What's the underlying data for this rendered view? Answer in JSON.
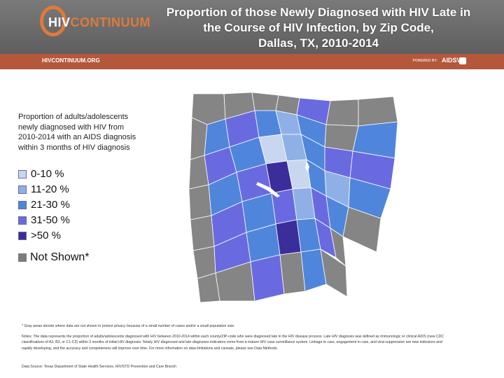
{
  "header": {
    "logo": {
      "part1": "HIV",
      "part2": "CONTINUUM"
    },
    "title_lines": [
      "Proportion of those Newly Diagnosed with HIV Late in",
      "the Course of HIV Infection, by Zip Code,",
      "Dallas, TX, 2010-2014"
    ]
  },
  "bar": {
    "site_url": "HIVCONTINUUM.ORG",
    "powered_by": "POWERED BY:",
    "partner": "AIDSVu"
  },
  "legend": {
    "title": "Proportion of adults/adolescents newly diagnosed with HIV from 2010-2014 with an AIDS diagnosis within 3 months of HIV diagnosis",
    "items": [
      {
        "label": "0-10 %",
        "color": "#c8d6f0"
      },
      {
        "label": "11-20 %",
        "color": "#8fb0e6"
      },
      {
        "label": "21-30 %",
        "color": "#4f86dc"
      },
      {
        "label": "31-50 %",
        "color": "#6a6ae0"
      },
      {
        "label": ">50 %",
        "color": "#3b2d9a"
      }
    ],
    "not_shown": {
      "label": "Not Shown*",
      "color": "#7c7c7c"
    }
  },
  "map_colors": {
    "not_shown": "#858585",
    "c1": "#c8d6f0",
    "c2": "#8fb0e6",
    "c3": "#4f86dc",
    "c4": "#6a6ae0",
    "c5": "#3b2d9a",
    "water": "#ffffff"
  },
  "footnotes": {
    "asterisk": "* Gray areas denote where data are not shown to protect privacy because of a small number of cases and/or a small population size.",
    "notes": "Notes: The data represents the proportion of adults/adolescents diagnosed with HIV between 2010-2014 within each county/ZIP-code who were diagnosed late in the HIV disease process. Late HIV diagnosis was defined as immunologic or clinical AIDS (new CDC classifications of A3, B3, or C1-C3) within 3 months of initial HIV diagnosis. Newly HIV diagnosed and late diagnoses indicators come from a mature HIV case surveillance system. Linkage to care, engagement in care, and viral suppression are new indicators and rapidly developing, and the accuracy and completeness will improve over time. For more information on data limitations and caveats, please see Data Methods.",
    "source": "Data Source: Texas Department of State Health Services, HIV/STD Prevention and Care Branch"
  }
}
